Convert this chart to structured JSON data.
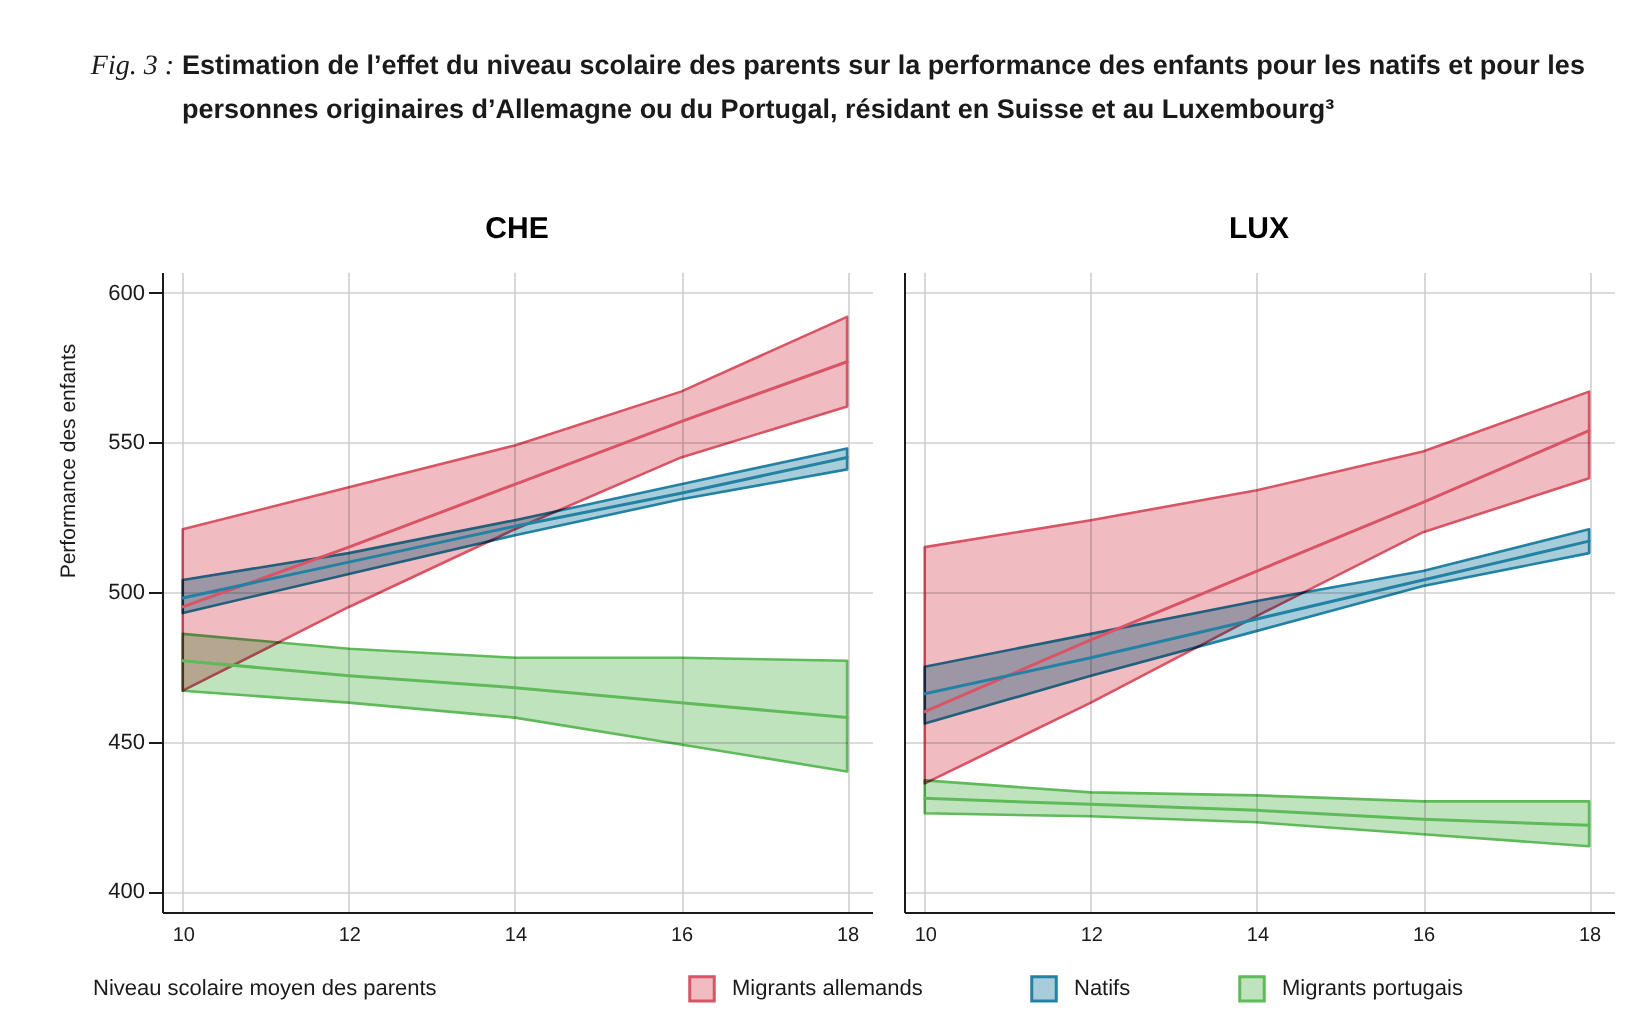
{
  "chart_data": [
    {
      "type": "line",
      "title": "CHE",
      "annotations": [
        "Fig. 3 :",
        "Estimation de l’effet du niveau scolaire des parents sur la performance des enfants pour les natifs et pour les personnes originaires d’Allemagne ou du Portugal, résidant en Suisse et au Luxembourg³"
      ],
      "xlabel": "Niveau scolaire moyen des parents",
      "ylabel": "Performance des enfants",
      "x": [
        10,
        12,
        14,
        16,
        18
      ],
      "xlim": [
        9.75,
        18.3
      ],
      "ylim": [
        393,
        607
      ],
      "xticks": [
        10,
        12,
        14,
        16,
        18
      ],
      "yticks": [
        400,
        450,
        500,
        550,
        600
      ],
      "grid": true,
      "legend": "bottom",
      "series": [
        {
          "name": "Migrants allemands",
          "color": "#d95465",
          "values": [
            495,
            515,
            536,
            557,
            577
          ],
          "lower": [
            467,
            495,
            521,
            545,
            562
          ],
          "upper": [
            521,
            535,
            549,
            567,
            592
          ]
        },
        {
          "name": "Natifs",
          "color": "#2382a3",
          "values": [
            498,
            510,
            522,
            533,
            545
          ],
          "lower": [
            493,
            506,
            519,
            531,
            541
          ],
          "upper": [
            504,
            513,
            524,
            536,
            548
          ]
        },
        {
          "name": "Migrants portugais",
          "color": "#5fba5a",
          "values": [
            477,
            472,
            468,
            463,
            458
          ],
          "lower": [
            467,
            463,
            458,
            449,
            440
          ],
          "upper": [
            486,
            481,
            478,
            478,
            477
          ]
        }
      ]
    },
    {
      "type": "line",
      "title": "LUX",
      "x": [
        10,
        12,
        14,
        16,
        18
      ],
      "xlim": [
        9.75,
        18.3
      ],
      "ylim": [
        393,
        607
      ],
      "xticks": [
        10,
        12,
        14,
        16,
        18
      ],
      "yticks": [
        400,
        450,
        500,
        550,
        600
      ],
      "grid": true,
      "tick_labels": "x",
      "series": [
        {
          "color": "#d95465",
          "values": [
            460,
            484,
            507,
            530,
            554
          ],
          "lower": [
            436,
            463,
            492,
            520,
            538
          ],
          "upper": [
            515,
            524,
            534,
            547,
            567
          ]
        },
        {
          "color": "#2382a3",
          "values": [
            466,
            478,
            491,
            504,
            517
          ],
          "lower": [
            456,
            472,
            487,
            502,
            513
          ],
          "upper": [
            475,
            486,
            497,
            507,
            521
          ]
        },
        {
          "color": "#5fba5a",
          "values": [
            431,
            429,
            427,
            424,
            422
          ],
          "lower": [
            426,
            425,
            423,
            419,
            415
          ],
          "upper": [
            437,
            433,
            432,
            430,
            430
          ]
        }
      ]
    }
  ]
}
